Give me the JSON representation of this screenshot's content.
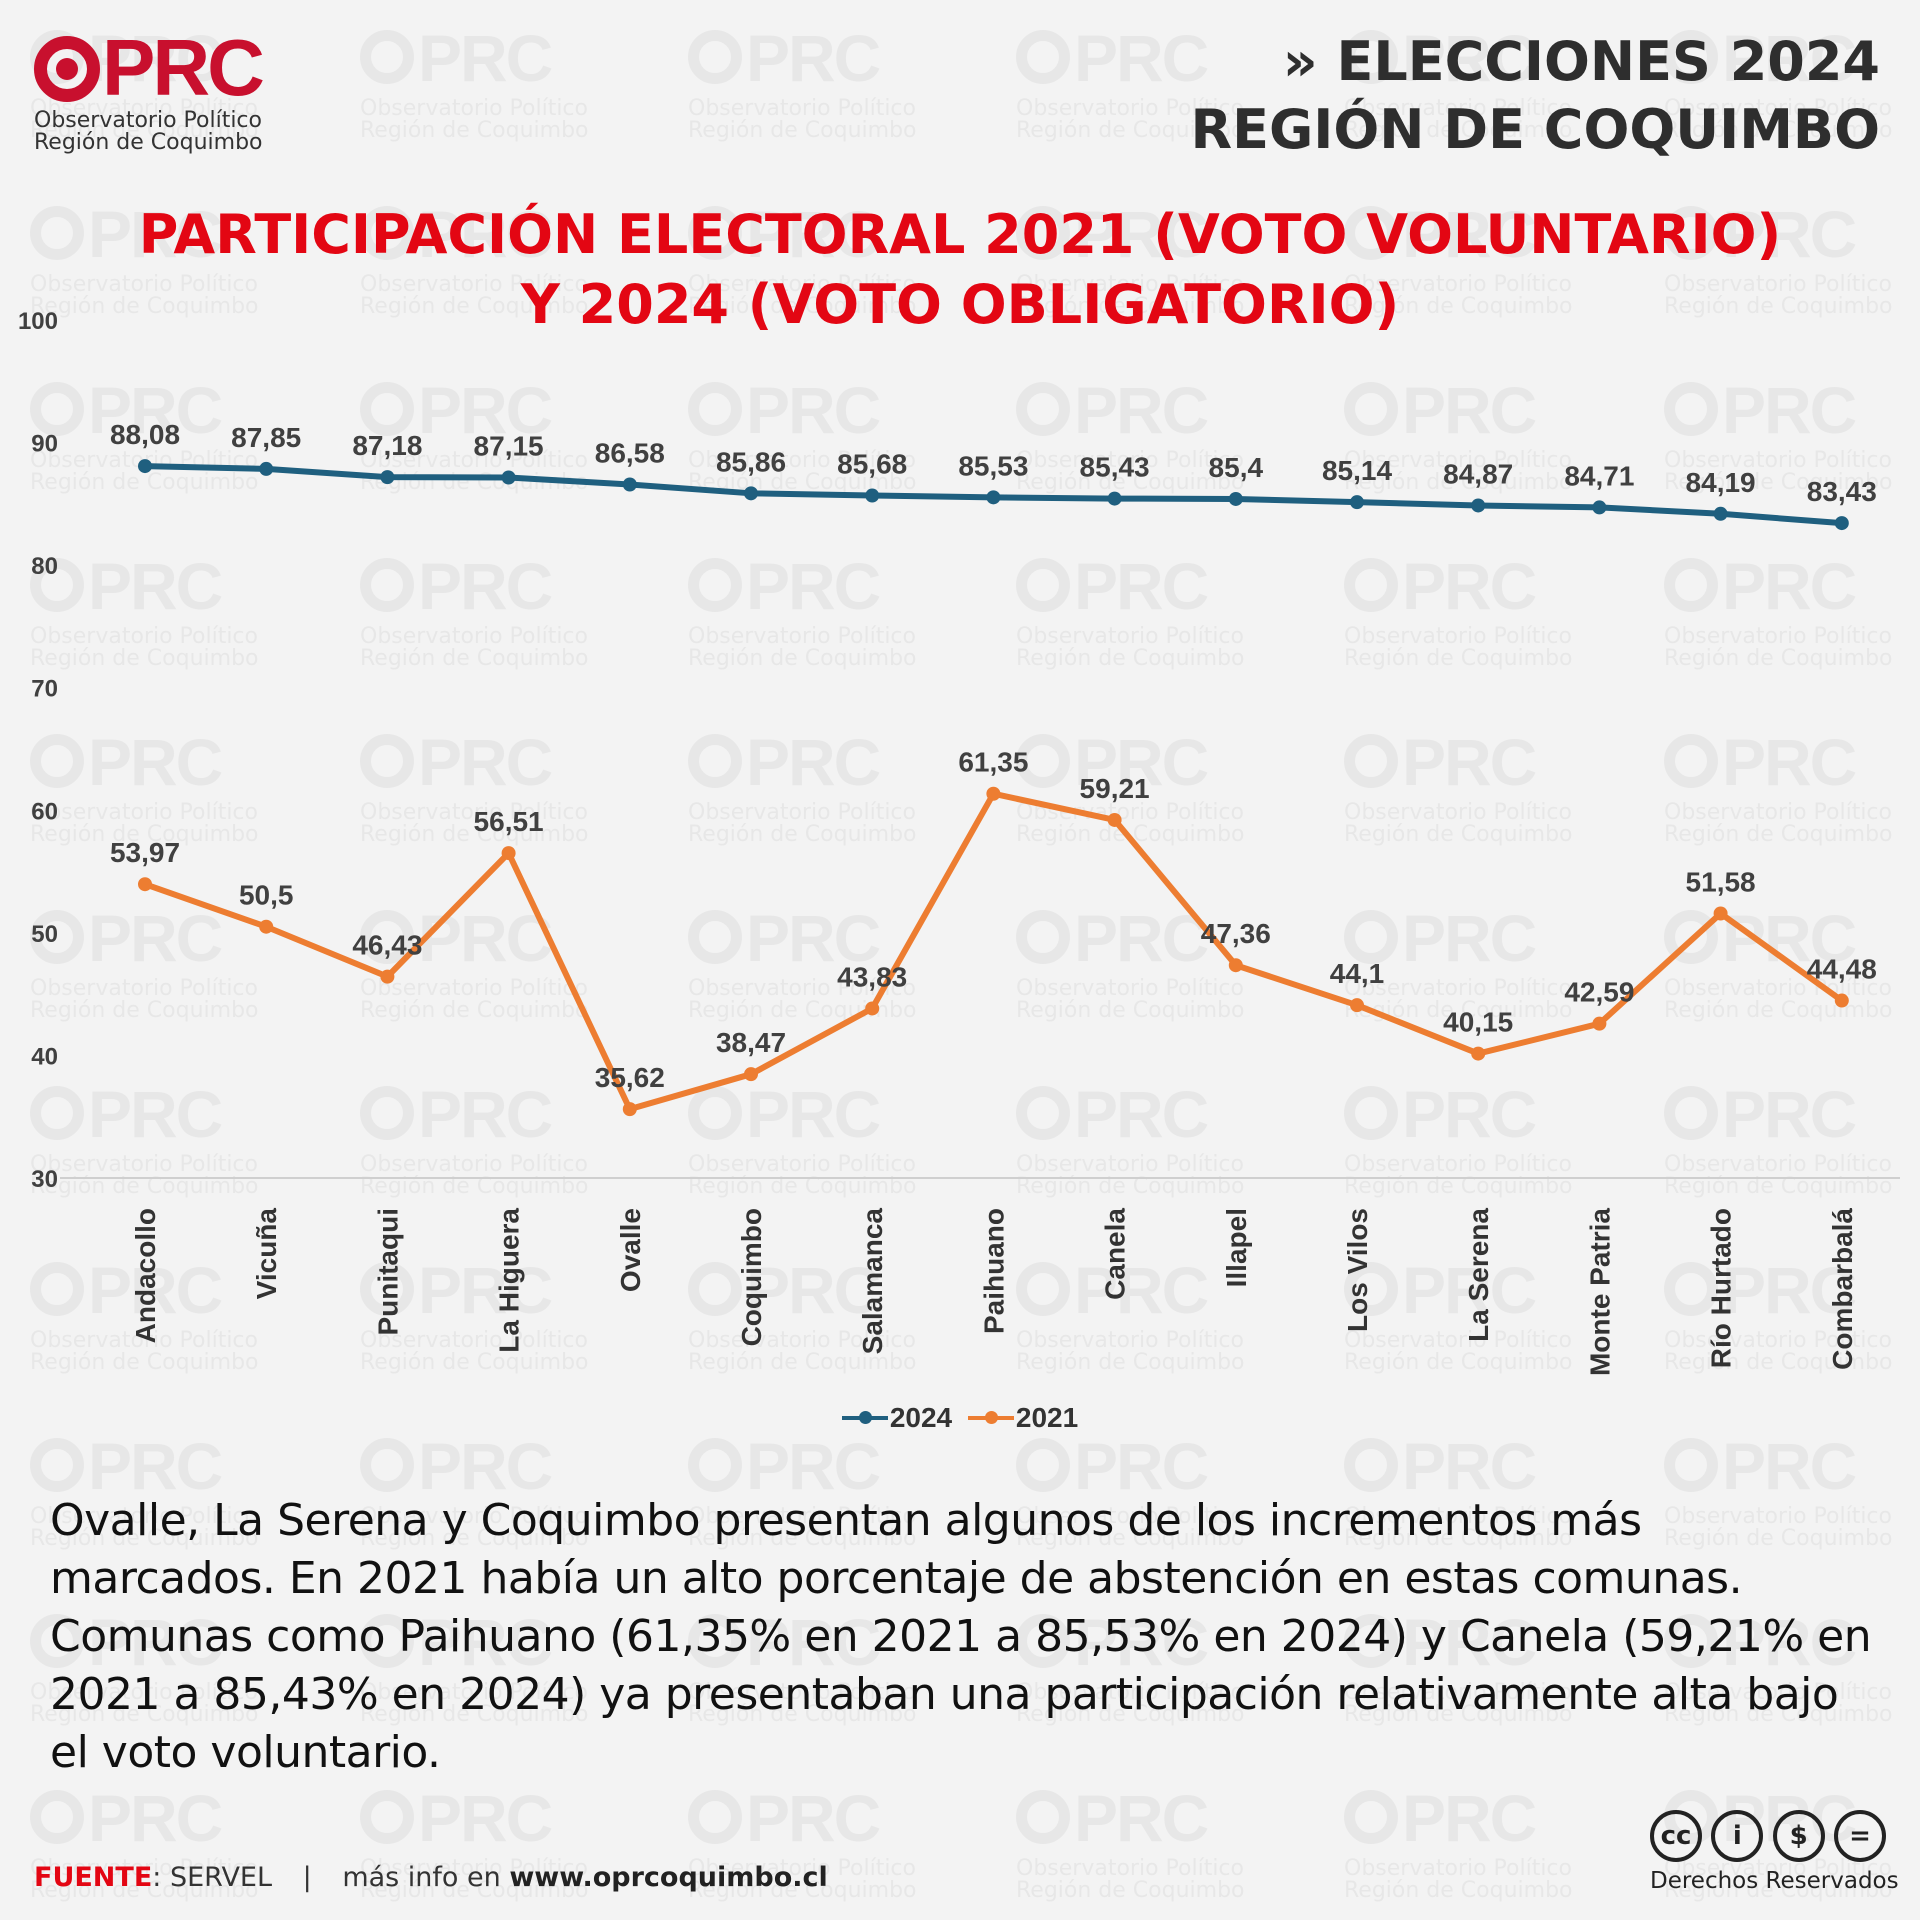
{
  "brand": {
    "logo_text": "OPRC",
    "subtitle_line1": "Observatorio Político",
    "subtitle_line2": "Región de Coquimbo",
    "accent_color": "#e30613"
  },
  "header": {
    "line1": "» ELECCIONES 2024",
    "line2": "REGIÓN DE COQUIMBO"
  },
  "chart_data": {
    "type": "line",
    "title_line1": "PARTICIPACIÓN ELECTORAL 2021 (VOTO VOLUNTARIO)",
    "title_line2": "Y 2024 (VOTO OBLIGATORIO)",
    "categories": [
      "Andacollo",
      "Vicuña",
      "Punitaqui",
      "La Higuera",
      "Ovalle",
      "Coquimbo",
      "Salamanca",
      "Paihuano",
      "Canela",
      "Illapel",
      "Los Vilos",
      "La Serena",
      "Monte Patria",
      "Río Hurtado",
      "Combarbalá"
    ],
    "series": [
      {
        "name": "2024",
        "color": "#1f5f7f",
        "values": [
          88.08,
          87.85,
          87.18,
          87.15,
          86.58,
          85.86,
          85.68,
          85.53,
          85.43,
          85.4,
          85.14,
          84.87,
          84.71,
          84.19,
          83.43
        ],
        "labels": [
          "88,08",
          "87,85",
          "87,18",
          "87,15",
          "86,58",
          "85,86",
          "85,68",
          "85,53",
          "85,43",
          "85,4",
          "85,14",
          "84,87",
          "84,71",
          "84,19",
          "83,43"
        ]
      },
      {
        "name": "2021",
        "color": "#ed7d31",
        "values": [
          53.97,
          50.5,
          46.43,
          56.51,
          35.62,
          38.47,
          43.83,
          61.35,
          59.21,
          47.36,
          44.1,
          40.15,
          42.59,
          51.58,
          44.48
        ],
        "labels": [
          "53,97",
          "50,5",
          "46,43",
          "56,51",
          "35,62",
          "38,47",
          "43,83",
          "61,35",
          "59,21",
          "47,36",
          "44,1",
          "40,15",
          "42,59",
          "51,58",
          "44,48"
        ]
      }
    ],
    "yticks": [
      "100",
      "90",
      "80",
      "70",
      "60",
      "50",
      "40",
      "30"
    ],
    "ylim": [
      30,
      100
    ],
    "grid": false,
    "legend_position": "bottom"
  },
  "description": "Ovalle, La Serena y Coquimbo presentan algunos de los incrementos más marcados. En 2021 había un alto porcentaje de abstención en estas comunas. Comunas como Paihuano (61,35% en 2021 a 85,53% en 2024) y Canela (59,21% en 2021 a 85,43% en 2024) ya presentaban una participación relativamente alta bajo el voto voluntario.",
  "footer": {
    "source_label": "FUENTE",
    "source_value": ": SERVEL",
    "separator": "|",
    "info_prefix": "más info en ",
    "url": "www.oprcoquimbo.cl"
  },
  "license": {
    "icons": [
      "cc",
      "by",
      "nc",
      "nd"
    ],
    "icon_glyphs": [
      "cc",
      "i",
      "$",
      "="
    ],
    "text": "Derechos Reservados"
  }
}
